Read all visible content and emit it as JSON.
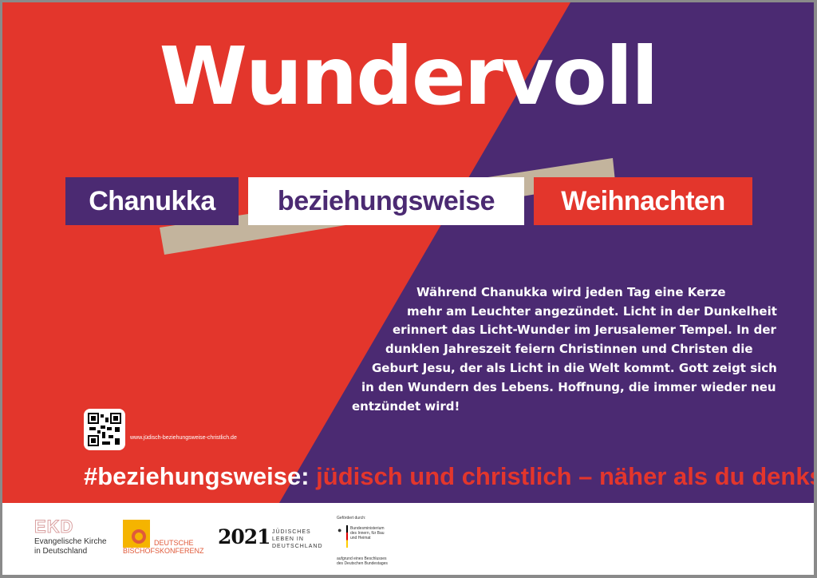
{
  "colors": {
    "red": "#e3362c",
    "purple": "#4b2a72",
    "tan": "#c3b49d",
    "white": "#ffffff"
  },
  "headline": "Wundervoll",
  "tags": {
    "left": "Chanukka",
    "middle": "beziehungsweise",
    "right": "Weihnachten"
  },
  "body_lines": [
    "Während Chanukka wird jeden Tag eine Kerze",
    "mehr am Leuchter angezündet. Licht in der Dunkelheit",
    "erinnert das Licht-Wunder im Jerusalemer Tempel. In der",
    "dunklen Jahreszeit feiern Christinnen und Christen die",
    "Geburt Jesu, der als Licht in die Welt kommt. Gott zeigt sich",
    "in den Wundern des Lebens. Hoffnung, die immer wieder neu",
    "entzündet wird!"
  ],
  "qr_icon": "qr-code-icon",
  "url": "www.jüdisch-beziehungsweise-christlich.de",
  "hashtag": {
    "prefix": "#beziehungsweise:",
    "rest": " jüdisch und christlich – näher als du denkst"
  },
  "footer": {
    "ekd": {
      "mark": "EKD",
      "line1": "Evangelische Kirche",
      "line2": "in Deutschland"
    },
    "dbk": {
      "line1": "DEUTSCHE",
      "line2": "BISCHOFSKONFERENZ"
    },
    "jubilee": {
      "year": "2021",
      "line1": "JÜDISCHES",
      "line2": "LEBEN IN",
      "line3": "DEUTSCHLAND"
    },
    "bmi": {
      "funded": "Gefördert durch:",
      "line1": "Bundesministerium",
      "line2": "des Innern, für Bau",
      "line3": "und Heimat",
      "note1": "aufgrund eines Beschlusses",
      "note2": "des Deutschen Bundestages"
    }
  }
}
